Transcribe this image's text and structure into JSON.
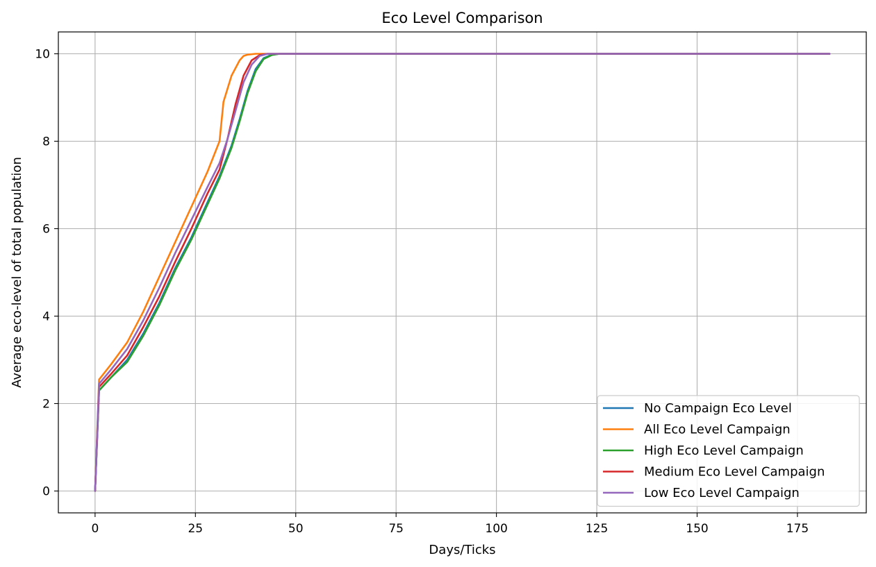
{
  "chart_data": {
    "type": "line",
    "title": "Eco Level Comparison",
    "xlabel": "Days/Ticks",
    "ylabel": "Average eco-level of total population",
    "xlim": [
      -9.15,
      192.15
    ],
    "ylim": [
      -0.5,
      10.5
    ],
    "xticks": [
      0,
      25,
      50,
      75,
      100,
      125,
      150,
      175
    ],
    "yticks": [
      0,
      2,
      4,
      6,
      8,
      10
    ],
    "grid": true,
    "legend_position": "lower right",
    "series": [
      {
        "name": "No Campaign Eco Level",
        "color": "#1f77b4",
        "x": [
          0,
          1,
          4,
          8,
          12,
          16,
          20,
          24,
          28,
          31,
          34,
          36,
          38,
          40,
          42,
          44,
          46,
          48,
          50,
          60,
          183
        ],
        "y": [
          0,
          2.3,
          2.6,
          3.0,
          3.6,
          4.3,
          5.1,
          5.8,
          6.6,
          7.2,
          7.9,
          8.5,
          9.15,
          9.65,
          9.9,
          9.98,
          10.0,
          10.0,
          10.0,
          10.0,
          10.0
        ]
      },
      {
        "name": "All Eco Level Campaign",
        "color": "#ff7f0e",
        "x": [
          0,
          1,
          4,
          8,
          12,
          16,
          20,
          24,
          28,
          31,
          32,
          34,
          36,
          37,
          38,
          40,
          42,
          44,
          50,
          60,
          183
        ],
        "y": [
          0,
          2.55,
          2.9,
          3.4,
          4.1,
          4.9,
          5.7,
          6.5,
          7.3,
          8.0,
          8.9,
          9.5,
          9.85,
          9.95,
          9.98,
          10.0,
          10.0,
          10.0,
          10.0,
          10.0,
          10.0
        ]
      },
      {
        "name": "High Eco Level Campaign",
        "color": "#2ca02c",
        "x": [
          0,
          1,
          4,
          8,
          12,
          16,
          20,
          24,
          28,
          31,
          34,
          36,
          38,
          40,
          42,
          44,
          46,
          48,
          50,
          60,
          183
        ],
        "y": [
          0,
          2.3,
          2.6,
          2.95,
          3.55,
          4.25,
          5.05,
          5.75,
          6.55,
          7.15,
          7.85,
          8.45,
          9.1,
          9.6,
          9.88,
          9.97,
          10.0,
          10.0,
          10.0,
          10.0,
          10.0
        ]
      },
      {
        "name": "Medium Eco Level Campaign",
        "color": "#d62728",
        "x": [
          0,
          1,
          4,
          8,
          12,
          16,
          20,
          24,
          28,
          31,
          33,
          35,
          37,
          39,
          41,
          43,
          45,
          50,
          60,
          183
        ],
        "y": [
          0,
          2.38,
          2.68,
          3.1,
          3.75,
          4.45,
          5.25,
          6.0,
          6.8,
          7.35,
          8.05,
          8.85,
          9.5,
          9.85,
          9.97,
          10.0,
          10.0,
          10.0,
          10.0,
          10.0
        ]
      },
      {
        "name": "Low Eco Level Campaign",
        "color": "#9467bd",
        "x": [
          0,
          1,
          4,
          8,
          12,
          16,
          20,
          24,
          28,
          31,
          33,
          35,
          37,
          39,
          41,
          43,
          45,
          50,
          60,
          183
        ],
        "y": [
          0,
          2.45,
          2.78,
          3.25,
          3.9,
          4.65,
          5.45,
          6.2,
          6.95,
          7.5,
          8.05,
          8.7,
          9.35,
          9.75,
          9.95,
          10.0,
          10.0,
          10.0,
          10.0,
          10.0
        ]
      }
    ]
  }
}
